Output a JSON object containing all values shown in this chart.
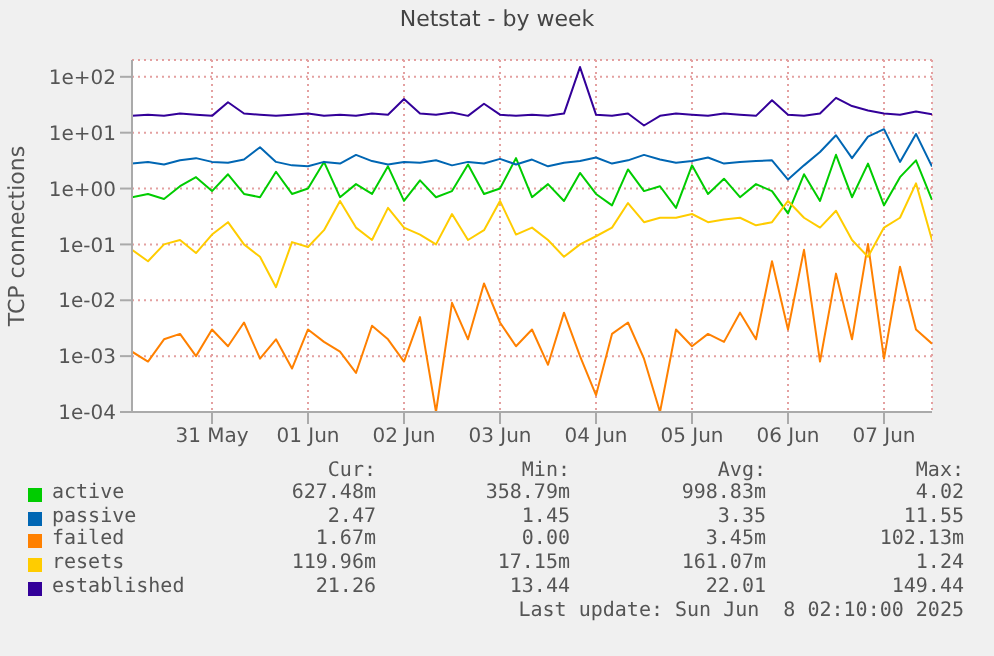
{
  "chart_data": {
    "type": "line",
    "title": "Netstat - by week",
    "ylabel": "TCP connections",
    "log": "y",
    "grid": true,
    "legend": "bottom",
    "x": [
      "2025-05-30T04:00",
      "2025-05-30T08:00",
      "2025-05-30T12:00",
      "2025-05-30T16:00",
      "2025-05-30T20:00",
      "2025-05-31T00:00",
      "2025-05-31T04:00",
      "2025-05-31T08:00",
      "2025-05-31T12:00",
      "2025-05-31T16:00",
      "2025-05-31T20:00",
      "2025-06-01T00:00",
      "2025-06-01T04:00",
      "2025-06-01T08:00",
      "2025-06-01T12:00",
      "2025-06-01T16:00",
      "2025-06-01T20:00",
      "2025-06-02T00:00",
      "2025-06-02T04:00",
      "2025-06-02T08:00",
      "2025-06-02T12:00",
      "2025-06-02T16:00",
      "2025-06-02T20:00",
      "2025-06-03T00:00",
      "2025-06-03T04:00",
      "2025-06-03T08:00",
      "2025-06-03T12:00",
      "2025-06-03T16:00",
      "2025-06-03T20:00",
      "2025-06-04T00:00",
      "2025-06-04T04:00",
      "2025-06-04T08:00",
      "2025-06-04T12:00",
      "2025-06-04T16:00",
      "2025-06-04T20:00",
      "2025-06-05T00:00",
      "2025-06-05T04:00",
      "2025-06-05T08:00",
      "2025-06-05T12:00",
      "2025-06-05T16:00",
      "2025-06-05T20:00",
      "2025-06-06T00:00",
      "2025-06-06T04:00",
      "2025-06-06T08:00",
      "2025-06-06T12:00",
      "2025-06-06T16:00",
      "2025-06-06T20:00",
      "2025-06-07T00:00",
      "2025-06-07T04:00",
      "2025-06-07T08:00",
      "2025-06-07T12:00"
    ],
    "xlim": [
      "2025-05-30T04:00",
      "2025-06-07T12:00"
    ],
    "xticks": [
      {
        "value": "2025-05-31",
        "label": "31 May"
      },
      {
        "value": "2025-06-01",
        "label": "01 Jun"
      },
      {
        "value": "2025-06-02",
        "label": "02 Jun"
      },
      {
        "value": "2025-06-03",
        "label": "03 Jun"
      },
      {
        "value": "2025-06-04",
        "label": "04 Jun"
      },
      {
        "value": "2025-06-05",
        "label": "05 Jun"
      },
      {
        "value": "2025-06-06",
        "label": "06 Jun"
      },
      {
        "value": "2025-06-07",
        "label": "07 Jun"
      }
    ],
    "ylim": [
      0.0001,
      200
    ],
    "yticks": [
      {
        "value": 0.0001,
        "label": "1e-04"
      },
      {
        "value": 0.001,
        "label": "1e-03"
      },
      {
        "value": 0.01,
        "label": "1e-02"
      },
      {
        "value": 0.1,
        "label": "1e-01"
      },
      {
        "value": 1,
        "label": "1e+00"
      },
      {
        "value": 10,
        "label": "1e+01"
      },
      {
        "value": 100,
        "label": "1e+02"
      }
    ],
    "series": [
      {
        "name": "active",
        "color": "#00cc00",
        "values": [
          0.7,
          0.8,
          0.65,
          1.1,
          1.6,
          0.9,
          1.8,
          0.8,
          0.7,
          2.0,
          0.8,
          1.0,
          3.0,
          0.7,
          1.2,
          0.8,
          2.5,
          0.6,
          1.4,
          0.7,
          0.9,
          2.7,
          0.8,
          1.0,
          3.5,
          0.7,
          1.2,
          0.6,
          1.9,
          0.8,
          0.5,
          2.2,
          0.9,
          1.1,
          0.45,
          2.6,
          0.8,
          1.5,
          0.7,
          1.2,
          0.9,
          0.36,
          1.8,
          0.6,
          4.02,
          0.7,
          2.8,
          0.5,
          1.6,
          3.2,
          0.62748
        ]
      },
      {
        "name": "passive",
        "color": "#0066b3",
        "values": [
          2.8,
          3.0,
          2.7,
          3.2,
          3.5,
          3.0,
          2.9,
          3.3,
          5.5,
          3.0,
          2.6,
          2.5,
          3.0,
          2.8,
          4.0,
          3.1,
          2.7,
          3.0,
          2.9,
          3.2,
          2.6,
          3.0,
          2.8,
          3.4,
          2.7,
          3.3,
          2.5,
          2.9,
          3.1,
          3.6,
          2.8,
          3.2,
          4.0,
          3.3,
          2.9,
          3.1,
          3.6,
          2.8,
          3.0,
          3.1,
          3.2,
          1.45,
          2.6,
          4.5,
          9.0,
          3.5,
          8.5,
          11.55,
          3.0,
          9.5,
          2.47
        ]
      },
      {
        "name": "failed",
        "color": "#ff8000",
        "values": [
          0.0012,
          0.0008,
          0.002,
          0.0025,
          0.001,
          0.003,
          0.0015,
          0.004,
          0.0009,
          0.002,
          0.0006,
          0.003,
          0.0018,
          0.0012,
          0.0005,
          0.0035,
          0.002,
          0.0008,
          0.005,
          0.0001,
          0.009,
          0.002,
          0.02,
          0.004,
          0.0015,
          0.003,
          0.0007,
          0.006,
          0.001,
          0.0002,
          0.0025,
          0.004,
          0.0009,
          0.0001,
          0.003,
          0.0015,
          0.0025,
          0.0018,
          0.006,
          0.002,
          0.05,
          0.003,
          0.08,
          0.0008,
          0.03,
          0.002,
          0.10213,
          0.0009,
          0.04,
          0.003,
          0.00167
        ]
      },
      {
        "name": "resets",
        "color": "#ffcc00",
        "values": [
          0.08,
          0.05,
          0.1,
          0.12,
          0.07,
          0.15,
          0.25,
          0.1,
          0.06,
          0.01715,
          0.11,
          0.09,
          0.18,
          0.6,
          0.2,
          0.12,
          0.45,
          0.2,
          0.15,
          0.1,
          0.35,
          0.12,
          0.18,
          0.6,
          0.15,
          0.2,
          0.12,
          0.06,
          0.1,
          0.14,
          0.2,
          0.55,
          0.25,
          0.3,
          0.3,
          0.35,
          0.25,
          0.28,
          0.3,
          0.22,
          0.25,
          0.6,
          0.3,
          0.2,
          0.4,
          0.12,
          0.06,
          0.2,
          0.3,
          1.24,
          0.11996
        ]
      },
      {
        "name": "established",
        "color": "#330099",
        "values": [
          20,
          21,
          20,
          22,
          21,
          20,
          35,
          22,
          21,
          20,
          21,
          22,
          20,
          21,
          20,
          22,
          21,
          40,
          22,
          21,
          23,
          20,
          33,
          21,
          20,
          21,
          20,
          22,
          149.44,
          21,
          20,
          22,
          13.44,
          20,
          22,
          21,
          20,
          22,
          21,
          20,
          38,
          21,
          20,
          22,
          42,
          30,
          25,
          22,
          21,
          24,
          21.26
        ]
      }
    ],
    "annotations": [
      "Cur:",
      "Min:",
      "Avg:",
      "Max:",
      "627.48m",
      "358.79m",
      "998.83m",
      "4.02",
      "2.47",
      "1.45",
      "3.35",
      "11.55",
      "1.67m",
      "0.00",
      "3.45m",
      "102.13m",
      "119.96m",
      "17.15m",
      "161.07m",
      "1.24",
      "21.26",
      "13.44",
      "22.01",
      "149.44",
      "Last update: Sun Jun  8 02:10:00 2025"
    ]
  }
}
